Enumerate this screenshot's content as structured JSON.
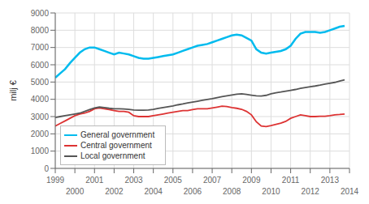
{
  "chart_data": {
    "type": "line",
    "ylabel": "milj €",
    "xlim": [
      1999,
      2014
    ],
    "ylim": [
      0,
      9000
    ],
    "xticks": [
      1999,
      2000,
      2001,
      2002,
      2003,
      2004,
      2005,
      2006,
      2007,
      2008,
      2009,
      2010,
      2011,
      2012,
      2013,
      2014
    ],
    "yticks": [
      0,
      1000,
      2000,
      3000,
      4000,
      5000,
      6000,
      7000,
      8000,
      9000
    ],
    "grid": true,
    "legend": "lower left",
    "x": [
      1999.0,
      1999.25,
      1999.5,
      1999.75,
      2000.0,
      2000.25,
      2000.5,
      2000.75,
      2001.0,
      2001.25,
      2001.5,
      2001.75,
      2002.0,
      2002.25,
      2002.5,
      2002.75,
      2003.0,
      2003.25,
      2003.5,
      2003.75,
      2004.0,
      2004.25,
      2004.5,
      2004.75,
      2005.0,
      2005.25,
      2005.5,
      2005.75,
      2006.0,
      2006.25,
      2006.5,
      2006.75,
      2007.0,
      2007.25,
      2007.5,
      2007.75,
      2008.0,
      2008.25,
      2008.5,
      2008.75,
      2009.0,
      2009.25,
      2009.5,
      2009.75,
      2010.0,
      2010.25,
      2010.5,
      2010.75,
      2011.0,
      2011.25,
      2011.5,
      2011.75,
      2012.0,
      2012.25,
      2012.5,
      2012.75,
      2013.0,
      2013.25,
      2013.5,
      2013.75
    ],
    "series": [
      {
        "name": "General government",
        "color": "#00BBEE",
        "values": [
          5250,
          5500,
          5750,
          6100,
          6400,
          6700,
          6900,
          7000,
          7000,
          6900,
          6800,
          6700,
          6600,
          6700,
          6650,
          6600,
          6500,
          6400,
          6350,
          6350,
          6400,
          6450,
          6500,
          6550,
          6600,
          6700,
          6800,
          6900,
          7000,
          7100,
          7150,
          7200,
          7300,
          7400,
          7500,
          7600,
          7700,
          7750,
          7700,
          7550,
          7400,
          6900,
          6700,
          6650,
          6700,
          6750,
          6800,
          6900,
          7100,
          7500,
          7800,
          7900,
          7900,
          7900,
          7850,
          7900,
          8000,
          8100,
          8200,
          8250
        ]
      },
      {
        "name": "Central government",
        "color": "#DD3333",
        "values": [
          2450,
          2600,
          2750,
          2900,
          3050,
          3150,
          3200,
          3300,
          3450,
          3500,
          3450,
          3400,
          3350,
          3300,
          3300,
          3250,
          3050,
          3000,
          3000,
          3000,
          3050,
          3100,
          3150,
          3200,
          3250,
          3300,
          3350,
          3350,
          3400,
          3450,
          3450,
          3450,
          3500,
          3550,
          3600,
          3580,
          3520,
          3480,
          3420,
          3300,
          3100,
          2700,
          2450,
          2420,
          2480,
          2550,
          2620,
          2720,
          2900,
          3000,
          3100,
          3050,
          3000,
          3000,
          3020,
          3020,
          3050,
          3100,
          3120,
          3150
        ]
      },
      {
        "name": "Local government",
        "color": "#555555",
        "values": [
          2950,
          3000,
          3050,
          3100,
          3150,
          3200,
          3300,
          3400,
          3500,
          3550,
          3520,
          3480,
          3450,
          3450,
          3440,
          3420,
          3380,
          3370,
          3370,
          3380,
          3420,
          3470,
          3520,
          3570,
          3620,
          3680,
          3730,
          3790,
          3840,
          3890,
          3940,
          3990,
          4040,
          4100,
          4150,
          4200,
          4250,
          4290,
          4320,
          4280,
          4240,
          4200,
          4190,
          4230,
          4320,
          4380,
          4420,
          4470,
          4520,
          4570,
          4630,
          4680,
          4730,
          4770,
          4820,
          4880,
          4930,
          4980,
          5060,
          5130
        ]
      }
    ]
  }
}
